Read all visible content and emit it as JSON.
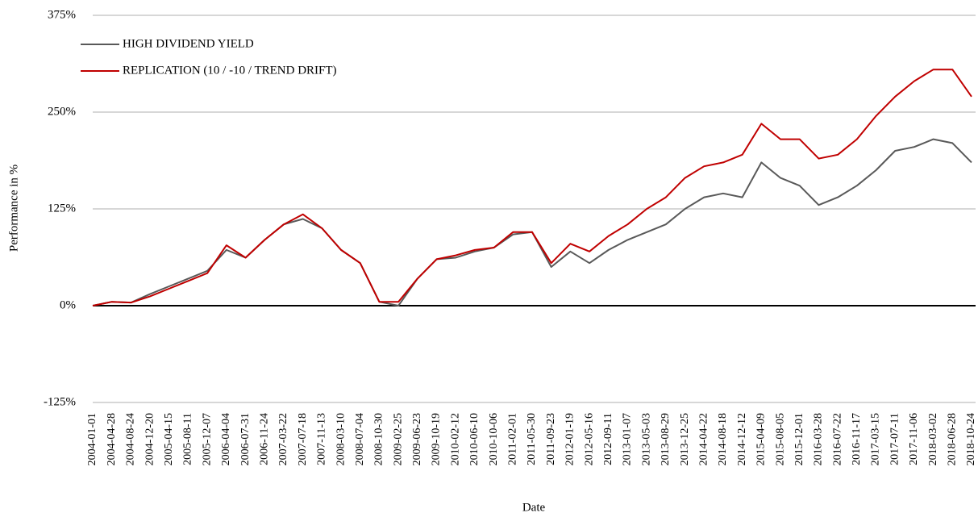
{
  "chart_data": {
    "type": "line",
    "x_label": "Date",
    "y_label": "Performance in %",
    "categories": [
      "2004-01-01",
      "2004-04-28",
      "2004-08-24",
      "2004-12-20",
      "2005-04-15",
      "2005-08-11",
      "2005-12-07",
      "2006-04-04",
      "2006-07-31",
      "2006-11-24",
      "2007-03-22",
      "2007-07-18",
      "2007-11-13",
      "2008-03-10",
      "2008-07-04",
      "2008-10-30",
      "2009-02-25",
      "2009-06-23",
      "2009-10-19",
      "2010-02-12",
      "2010-06-10",
      "2010-10-06",
      "2011-02-01",
      "2011-05-30",
      "2011-09-23",
      "2012-01-19",
      "2012-05-16",
      "2012-09-11",
      "2013-01-07",
      "2013-05-03",
      "2013-08-29",
      "2013-12-25",
      "2014-04-22",
      "2014-08-18",
      "2014-12-12",
      "2015-04-09",
      "2015-08-05",
      "2015-12-01",
      "2016-03-28",
      "2016-07-22",
      "2016-11-17",
      "2017-03-15",
      "2017-07-11",
      "2017-11-06",
      "2018-03-02",
      "2018-06-28",
      "2018-10-24"
    ],
    "series": [
      {
        "name": "HIGH DIVIDEND YIELD",
        "color": "#595959",
        "values": [
          0,
          5,
          4,
          15,
          25,
          35,
          45,
          72,
          62,
          85,
          105,
          112,
          100,
          72,
          55,
          5,
          0,
          35,
          60,
          62,
          70,
          75,
          92,
          95,
          50,
          70,
          55,
          72,
          85,
          95,
          105,
          125,
          140,
          145,
          140,
          185,
          165,
          155,
          130,
          140,
          155,
          175,
          200,
          205,
          215,
          210,
          185
        ]
      },
      {
        "name": "REPLICATION (10 / -10 / TREND DRIFT)",
        "color": "#c00000",
        "values": [
          0,
          5,
          4,
          12,
          22,
          32,
          42,
          78,
          62,
          85,
          105,
          118,
          100,
          72,
          55,
          5,
          5,
          35,
          60,
          65,
          72,
          75,
          95,
          95,
          55,
          80,
          70,
          90,
          105,
          125,
          140,
          165,
          180,
          185,
          195,
          235,
          215,
          215,
          190,
          195,
          215,
          245,
          270,
          290,
          305,
          305,
          270
        ]
      }
    ],
    "ylim": [
      -125,
      375
    ],
    "yticks": [
      {
        "value": -125,
        "label": "-125%"
      },
      {
        "value": 0,
        "label": "0%"
      },
      {
        "value": 125,
        "label": "125%"
      },
      {
        "value": 250,
        "label": "250%"
      },
      {
        "value": 375,
        "label": "375%"
      }
    ],
    "grid": true,
    "legend": "upper left"
  }
}
